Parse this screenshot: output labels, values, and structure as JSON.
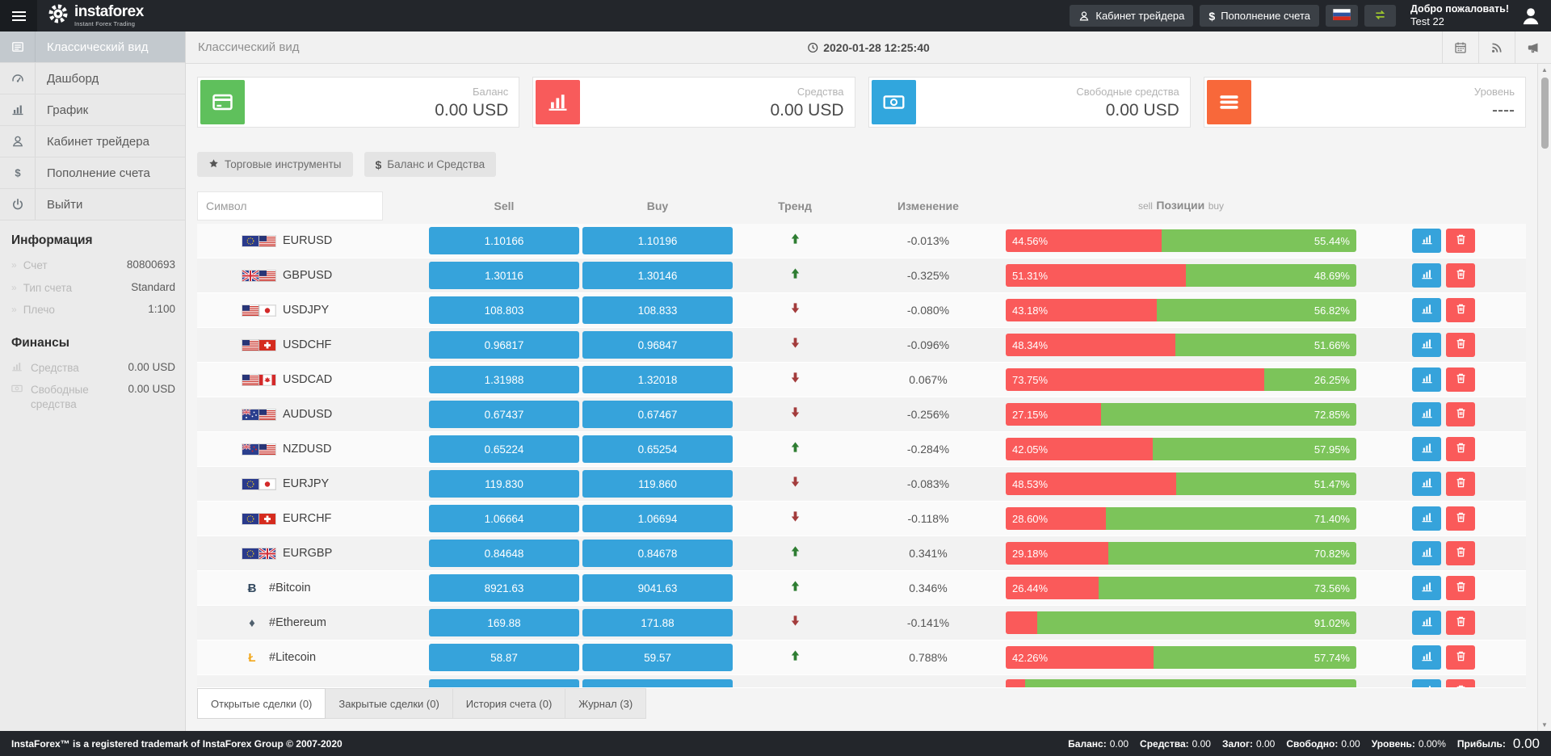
{
  "colors": {
    "primary_blue": "#36a3db",
    "bar_red": "#fa5a5a",
    "bar_green": "#7cc45a",
    "trend_up": "#2e7d32",
    "trend_down": "#a33c3c",
    "accent_green": "#9dc62d",
    "card_green": "#5fc05c",
    "card_red": "#f85b5b",
    "card_blue": "#31a6dd",
    "card_orange": "#f8683a"
  },
  "header": {
    "logo_name": "instaforex",
    "logo_tagline": "Instant Forex Trading",
    "cabinet_label": "Кабинет трейдера",
    "deposit_label": "Пополнение счета",
    "welcome_line1": "Добро пожаловать!",
    "welcome_line2": "Test 22"
  },
  "subheader": {
    "breadcrumb": "Классический вид",
    "datetime": "2020-01-28 12:25:40"
  },
  "sidebar": {
    "menu": [
      {
        "label": "Классический вид",
        "icon": "list-icon",
        "active": true
      },
      {
        "label": "Дашборд",
        "icon": "dashboard-icon",
        "active": false
      },
      {
        "label": "График",
        "icon": "chart-icon",
        "active": false
      },
      {
        "label": "Кабинет трейдера",
        "icon": "user-icon",
        "active": false
      },
      {
        "label": "Пополнение счета",
        "icon": "dollar-icon",
        "active": false
      },
      {
        "label": "Выйти",
        "icon": "power-icon",
        "active": false
      }
    ],
    "info": {
      "title": "Информация",
      "rows": [
        {
          "label": "Счет",
          "value": "80800693"
        },
        {
          "label": "Тип счета",
          "value": "Standard"
        },
        {
          "label": "Плечо",
          "value": "1:100"
        }
      ]
    },
    "finance": {
      "title": "Финансы",
      "rows": [
        {
          "icon": "chart-icon",
          "label": "Средства",
          "value": "0.00 USD"
        },
        {
          "icon": "money-icon",
          "label": "Свободные средства",
          "value": "0.00 USD"
        }
      ]
    }
  },
  "cards": [
    {
      "icon": "credit-card-icon",
      "color": "#5fc05c",
      "label": "Баланс",
      "value": "0.00 USD"
    },
    {
      "icon": "chart-icon",
      "color": "#f85b5b",
      "label": "Средства",
      "value": "0.00 USD"
    },
    {
      "icon": "money-icon",
      "color": "#31a6dd",
      "label": "Свободные средства",
      "value": "0.00 USD"
    },
    {
      "icon": "menu-icon",
      "color": "#f8683a",
      "label": "Уровень",
      "value": "----"
    }
  ],
  "filters": [
    {
      "icon": "star-icon",
      "label": "Торговые инструменты"
    },
    {
      "icon": "dollar-text",
      "label": "Баланс и Средства"
    }
  ],
  "table": {
    "symbol_placeholder": "Символ",
    "headers": {
      "sell": "Sell",
      "buy": "Buy",
      "trend": "Тренд",
      "change": "Изменение",
      "pos_left": "sell",
      "pos_mid": "Позиции",
      "pos_right": "buy"
    },
    "rows": [
      {
        "symbol": "EURUSD",
        "flags": [
          "eu",
          "us"
        ],
        "sell": "1.10166",
        "buy": "1.10196",
        "trend": "up",
        "change": "-0.013%",
        "sell_pct": 44.56,
        "buy_pct": 55.44,
        "sell_label": "44.56%",
        "buy_label": "55.44%"
      },
      {
        "symbol": "GBPUSD",
        "flags": [
          "gb",
          "us"
        ],
        "sell": "1.30116",
        "buy": "1.30146",
        "trend": "up",
        "change": "-0.325%",
        "sell_pct": 51.31,
        "buy_pct": 48.69,
        "sell_label": "51.31%",
        "buy_label": "48.69%"
      },
      {
        "symbol": "USDJPY",
        "flags": [
          "us",
          "jp"
        ],
        "sell": "108.803",
        "buy": "108.833",
        "trend": "down",
        "change": "-0.080%",
        "sell_pct": 43.18,
        "buy_pct": 56.82,
        "sell_label": "43.18%",
        "buy_label": "56.82%"
      },
      {
        "symbol": "USDCHF",
        "flags": [
          "us",
          "ch"
        ],
        "sell": "0.96817",
        "buy": "0.96847",
        "trend": "down",
        "change": "-0.096%",
        "sell_pct": 48.34,
        "buy_pct": 51.66,
        "sell_label": "48.34%",
        "buy_label": "51.66%"
      },
      {
        "symbol": "USDCAD",
        "flags": [
          "us",
          "ca"
        ],
        "sell": "1.31988",
        "buy": "1.32018",
        "trend": "down",
        "change": "0.067%",
        "sell_pct": 73.75,
        "buy_pct": 26.25,
        "sell_label": "73.75%",
        "buy_label": "26.25%"
      },
      {
        "symbol": "AUDUSD",
        "flags": [
          "au",
          "us"
        ],
        "sell": "0.67437",
        "buy": "0.67467",
        "trend": "down",
        "change": "-0.256%",
        "sell_pct": 27.15,
        "buy_pct": 72.85,
        "sell_label": "27.15%",
        "buy_label": "72.85%"
      },
      {
        "symbol": "NZDUSD",
        "flags": [
          "nz",
          "us"
        ],
        "sell": "0.65224",
        "buy": "0.65254",
        "trend": "up",
        "change": "-0.284%",
        "sell_pct": 42.05,
        "buy_pct": 57.95,
        "sell_label": "42.05%",
        "buy_label": "57.95%"
      },
      {
        "symbol": "EURJPY",
        "flags": [
          "eu",
          "jp"
        ],
        "sell": "119.830",
        "buy": "119.860",
        "trend": "down",
        "change": "-0.083%",
        "sell_pct": 48.53,
        "buy_pct": 51.47,
        "sell_label": "48.53%",
        "buy_label": "51.47%"
      },
      {
        "symbol": "EURCHF",
        "flags": [
          "eu",
          "ch"
        ],
        "sell": "1.06664",
        "buy": "1.06694",
        "trend": "down",
        "change": "-0.118%",
        "sell_pct": 28.6,
        "buy_pct": 71.4,
        "sell_label": "28.60%",
        "buy_label": "71.40%"
      },
      {
        "symbol": "EURGBP",
        "flags": [
          "eu",
          "gb"
        ],
        "sell": "0.84648",
        "buy": "0.84678",
        "trend": "up",
        "change": "0.341%",
        "sell_pct": 29.18,
        "buy_pct": 70.82,
        "sell_label": "29.18%",
        "buy_label": "70.82%"
      },
      {
        "symbol": "#Bitcoin",
        "crypto": "btc",
        "sell": "8921.63",
        "buy": "9041.63",
        "trend": "up",
        "change": "0.346%",
        "sell_pct": 26.44,
        "buy_pct": 73.56,
        "sell_label": "26.44%",
        "buy_label": "73.56%"
      },
      {
        "symbol": "#Ethereum",
        "crypto": "eth",
        "sell": "169.88",
        "buy": "171.88",
        "trend": "down",
        "change": "-0.141%",
        "sell_pct": 8.98,
        "buy_pct": 91.02,
        "sell_label": "",
        "buy_label": "91.02%"
      },
      {
        "symbol": "#Litecoin",
        "crypto": "ltc",
        "sell": "58.87",
        "buy": "59.57",
        "trend": "up",
        "change": "0.788%",
        "sell_pct": 42.26,
        "buy_pct": 57.74,
        "sell_label": "42.26%",
        "buy_label": "57.74%"
      }
    ],
    "partial_row": {
      "sell_pct": 5.5,
      "buy_pct": 94.5
    }
  },
  "tabs": [
    {
      "label": "Открытые сделки (0)",
      "active": true
    },
    {
      "label": "Закрытые сделки (0)",
      "active": false
    },
    {
      "label": "История счета (0)",
      "active": false
    },
    {
      "label": "Журнал (3)",
      "active": false
    }
  ],
  "footer": {
    "left": "InstaForex™ is a registered trademark of InstaForex Group © 2007-2020",
    "stats": [
      {
        "label": "Баланс:",
        "value": "0.00"
      },
      {
        "label": "Средства:",
        "value": "0.00"
      },
      {
        "label": "Залог:",
        "value": "0.00"
      },
      {
        "label": "Свободно:",
        "value": "0.00"
      },
      {
        "label": "Уровень:",
        "value": "0.00%"
      }
    ],
    "profit_label": "Прибыль:",
    "profit_value": "0.00"
  }
}
